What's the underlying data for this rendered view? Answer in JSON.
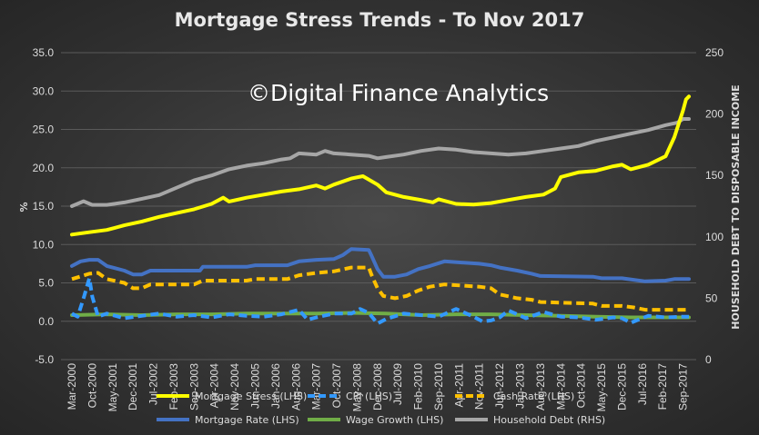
{
  "chart_data": {
    "type": "line",
    "title": "Mortgage Stress Trends - To Nov 2017",
    "watermark": "©Digital Finance Analytics",
    "ylabel_left": "%",
    "ylabel_right": "HOUSEHOLD DEBT TO DISPOSABLE INCOME",
    "ylim_left": [
      -5,
      35
    ],
    "ylim_right": [
      0,
      250
    ],
    "yticks_left": [
      "-5.0",
      "0.0",
      "5.0",
      "10.0",
      "15.0",
      "20.0",
      "25.0",
      "30.0",
      "35.0"
    ],
    "yticks_right": [
      "0",
      "50",
      "100",
      "150",
      "200",
      "250"
    ],
    "x_range": [
      "Mar-2000",
      "Nov-2017"
    ],
    "xticks": [
      "Mar-2000",
      "Oct-2000",
      "May-2001",
      "Dec-2001",
      "Jul-2002",
      "Feb-2003",
      "Sep-2003",
      "Apr-2004",
      "Nov-2004",
      "Jun-2005",
      "Jan-2006",
      "Aug-2006",
      "Mar-2007",
      "Oct-2007",
      "May-2008",
      "Dec-2008",
      "Jul-2009",
      "Feb-2010",
      "Sep-2010",
      "Apr-2011",
      "Nov-2011",
      "Jun-2012",
      "Jan-2013",
      "Aug-2013",
      "Mar-2014",
      "Oct-2014",
      "May-2015",
      "Dec-2015",
      "Jul-2016",
      "Feb-2017",
      "Sep-2017"
    ],
    "grid": true,
    "legend_position": "bottom",
    "series": [
      {
        "name": "Mortgage Stress (LHS)",
        "axis": "left",
        "color": "#ffff00",
        "dash": "solid",
        "points": [
          [
            "Mar-2000",
            11.3
          ],
          [
            "Sep-2000",
            11.6
          ],
          [
            "Mar-2001",
            11.9
          ],
          [
            "Sep-2001",
            12.5
          ],
          [
            "Mar-2002",
            13.0
          ],
          [
            "Sep-2002",
            13.6
          ],
          [
            "Mar-2003",
            14.1
          ],
          [
            "Sep-2003",
            14.6
          ],
          [
            "Mar-2004",
            15.3
          ],
          [
            "Jul-2004",
            16.1
          ],
          [
            "Sep-2004",
            15.6
          ],
          [
            "Mar-2005",
            16.1
          ],
          [
            "Sep-2005",
            16.5
          ],
          [
            "Mar-2006",
            16.9
          ],
          [
            "Sep-2006",
            17.2
          ],
          [
            "Mar-2007",
            17.7
          ],
          [
            "Jun-2007",
            17.3
          ],
          [
            "Sep-2007",
            17.8
          ],
          [
            "Mar-2008",
            18.6
          ],
          [
            "Jul-2008",
            18.9
          ],
          [
            "Dec-2008",
            17.8
          ],
          [
            "Mar-2009",
            16.8
          ],
          [
            "Sep-2009",
            16.2
          ],
          [
            "Mar-2010",
            15.8
          ],
          [
            "Jul-2010",
            15.5
          ],
          [
            "Sep-2010",
            15.9
          ],
          [
            "Mar-2011",
            15.3
          ],
          [
            "Sep-2011",
            15.2
          ],
          [
            "Mar-2012",
            15.4
          ],
          [
            "Sep-2012",
            15.8
          ],
          [
            "Mar-2013",
            16.2
          ],
          [
            "Sep-2013",
            16.5
          ],
          [
            "Jan-2014",
            17.3
          ],
          [
            "Mar-2014",
            18.8
          ],
          [
            "Sep-2014",
            19.4
          ],
          [
            "Mar-2015",
            19.6
          ],
          [
            "Sep-2015",
            20.2
          ],
          [
            "Dec-2015",
            20.4
          ],
          [
            "Mar-2016",
            19.8
          ],
          [
            "Sep-2016",
            20.4
          ],
          [
            "Mar-2017",
            21.5
          ],
          [
            "Jun-2017",
            24.0
          ],
          [
            "Sep-2017",
            27.5
          ],
          [
            "Oct-2017",
            28.9
          ],
          [
            "Nov-2017",
            29.3
          ]
        ]
      },
      {
        "name": "CPI (LHS)",
        "axis": "left",
        "color": "#3399ff",
        "dash": "dash",
        "points": [
          [
            "Mar-2000",
            1.0
          ],
          [
            "May-2000",
            0.6
          ],
          [
            "Jul-2000",
            3.0
          ],
          [
            "Sep-2000",
            5.6
          ],
          [
            "Oct-2000",
            3.2
          ],
          [
            "Dec-2000",
            0.6
          ],
          [
            "Mar-2001",
            1.0
          ],
          [
            "Sep-2001",
            0.4
          ],
          [
            "Mar-2002",
            0.7
          ],
          [
            "Sep-2002",
            1.0
          ],
          [
            "Mar-2003",
            0.6
          ],
          [
            "Sep-2003",
            0.8
          ],
          [
            "Mar-2004",
            0.5
          ],
          [
            "Sep-2004",
            0.9
          ],
          [
            "Mar-2005",
            0.7
          ],
          [
            "Sep-2005",
            0.6
          ],
          [
            "Mar-2006",
            0.9
          ],
          [
            "Sep-2006",
            1.5
          ],
          [
            "Dec-2006",
            0.2
          ],
          [
            "Mar-2007",
            0.5
          ],
          [
            "Sep-2007",
            1.0
          ],
          [
            "Mar-2008",
            1.0
          ],
          [
            "Jun-2008",
            1.6
          ],
          [
            "Sep-2008",
            1.1
          ],
          [
            "Dec-2008",
            -0.3
          ],
          [
            "Mar-2009",
            0.3
          ],
          [
            "Sep-2009",
            1.0
          ],
          [
            "Mar-2010",
            0.8
          ],
          [
            "Sep-2010",
            0.6
          ],
          [
            "Mar-2011",
            1.6
          ],
          [
            "Sep-2011",
            0.6
          ],
          [
            "Dec-2011",
            0.0
          ],
          [
            "Mar-2012",
            0.1
          ],
          [
            "Jun-2012",
            0.5
          ],
          [
            "Sep-2012",
            1.4
          ],
          [
            "Mar-2013",
            0.4
          ],
          [
            "Sep-2013",
            1.2
          ],
          [
            "Mar-2014",
            0.6
          ],
          [
            "Sep-2014",
            0.5
          ],
          [
            "Mar-2015",
            0.2
          ],
          [
            "Sep-2015",
            0.5
          ],
          [
            "Dec-2015",
            0.4
          ],
          [
            "Mar-2016",
            -0.2
          ],
          [
            "Sep-2016",
            0.7
          ],
          [
            "Mar-2017",
            0.5
          ],
          [
            "Sep-2017",
            0.6
          ],
          [
            "Nov-2017",
            0.6
          ]
        ]
      },
      {
        "name": "Cash Rate (LHS)",
        "axis": "left",
        "color": "#ffc000",
        "dash": "dash",
        "points": [
          [
            "Mar-2000",
            5.5
          ],
          [
            "Sep-2000",
            6.2
          ],
          [
            "Dec-2000",
            6.3
          ],
          [
            "Mar-2001",
            5.5
          ],
          [
            "Sep-2001",
            5.0
          ],
          [
            "Dec-2001",
            4.3
          ],
          [
            "Mar-2002",
            4.3
          ],
          [
            "Jun-2002",
            4.8
          ],
          [
            "Sep-2003",
            4.8
          ],
          [
            "Dec-2003",
            5.3
          ],
          [
            "Mar-2005",
            5.3
          ],
          [
            "Jun-2005",
            5.5
          ],
          [
            "May-2006",
            5.5
          ],
          [
            "Sep-2006",
            6.0
          ],
          [
            "Mar-2007",
            6.3
          ],
          [
            "Sep-2007",
            6.5
          ],
          [
            "Mar-2008",
            7.0
          ],
          [
            "Sep-2008",
            7.0
          ],
          [
            "Oct-2008",
            6.0
          ],
          [
            "Dec-2008",
            4.3
          ],
          [
            "Feb-2009",
            3.3
          ],
          [
            "Jun-2009",
            3.0
          ],
          [
            "Oct-2009",
            3.3
          ],
          [
            "Feb-2010",
            4.0
          ],
          [
            "Jun-2010",
            4.5
          ],
          [
            "Nov-2010",
            4.8
          ],
          [
            "Nov-2011",
            4.5
          ],
          [
            "Mar-2012",
            4.3
          ],
          [
            "Jun-2012",
            3.5
          ],
          [
            "Dec-2012",
            3.0
          ],
          [
            "May-2013",
            2.8
          ],
          [
            "Aug-2013",
            2.5
          ],
          [
            "Feb-2015",
            2.3
          ],
          [
            "May-2015",
            2.0
          ],
          [
            "Dec-2015",
            2.0
          ],
          [
            "Apr-2016",
            1.8
          ],
          [
            "Aug-2016",
            1.5
          ],
          [
            "Nov-2017",
            1.5
          ]
        ]
      },
      {
        "name": "Mortgage Rate (LHS)",
        "axis": "left",
        "color": "#4472c4",
        "dash": "solid",
        "points": [
          [
            "Mar-2000",
            7.2
          ],
          [
            "Jun-2000",
            7.8
          ],
          [
            "Sep-2000",
            8.0
          ],
          [
            "Dec-2000",
            8.0
          ],
          [
            "Mar-2001",
            7.2
          ],
          [
            "Sep-2001",
            6.6
          ],
          [
            "Dec-2001",
            6.1
          ],
          [
            "Mar-2002",
            6.1
          ],
          [
            "Jun-2002",
            6.6
          ],
          [
            "Nov-2003",
            6.6
          ],
          [
            "Dec-2003",
            7.1
          ],
          [
            "Mar-2005",
            7.1
          ],
          [
            "Jun-2005",
            7.3
          ],
          [
            "May-2006",
            7.3
          ],
          [
            "Sep-2006",
            7.8
          ],
          [
            "Mar-2007",
            8.0
          ],
          [
            "Sep-2007",
            8.1
          ],
          [
            "Dec-2007",
            8.6
          ],
          [
            "Mar-2008",
            9.4
          ],
          [
            "Sep-2008",
            9.3
          ],
          [
            "Oct-2008",
            8.5
          ],
          [
            "Dec-2008",
            6.8
          ],
          [
            "Feb-2009",
            5.8
          ],
          [
            "Jun-2009",
            5.8
          ],
          [
            "Oct-2009",
            6.1
          ],
          [
            "Feb-2010",
            6.8
          ],
          [
            "Jun-2010",
            7.2
          ],
          [
            "Nov-2010",
            7.8
          ],
          [
            "Nov-2011",
            7.5
          ],
          [
            "Mar-2012",
            7.3
          ],
          [
            "Jun-2012",
            7.0
          ],
          [
            "Dec-2012",
            6.6
          ],
          [
            "May-2013",
            6.2
          ],
          [
            "Aug-2013",
            5.9
          ],
          [
            "Feb-2015",
            5.8
          ],
          [
            "May-2015",
            5.6
          ],
          [
            "Dec-2015",
            5.6
          ],
          [
            "Apr-2016",
            5.4
          ],
          [
            "Aug-2016",
            5.2
          ],
          [
            "Mar-2017",
            5.3
          ],
          [
            "Jun-2017",
            5.5
          ],
          [
            "Nov-2017",
            5.5
          ]
        ]
      },
      {
        "name": "Wage Growth (LHS)",
        "axis": "left",
        "color": "#70ad47",
        "dash": "solid",
        "points": [
          [
            "Mar-2000",
            0.8
          ],
          [
            "Mar-2001",
            0.9
          ],
          [
            "Mar-2002",
            0.8
          ],
          [
            "Mar-2003",
            0.9
          ],
          [
            "Mar-2004",
            0.9
          ],
          [
            "Mar-2005",
            1.0
          ],
          [
            "Mar-2006",
            1.0
          ],
          [
            "Mar-2007",
            1.0
          ],
          [
            "Mar-2008",
            1.1
          ],
          [
            "Mar-2009",
            1.0
          ],
          [
            "Mar-2010",
            0.8
          ],
          [
            "Mar-2011",
            0.9
          ],
          [
            "Mar-2012",
            0.9
          ],
          [
            "Mar-2013",
            0.8
          ],
          [
            "Mar-2014",
            0.7
          ],
          [
            "Mar-2015",
            0.6
          ],
          [
            "Mar-2016",
            0.5
          ],
          [
            "Mar-2017",
            0.5
          ],
          [
            "Nov-2017",
            0.5
          ]
        ]
      },
      {
        "name": "Household Debt (RHS)",
        "axis": "right",
        "color": "#a6a6a6",
        "dash": "solid",
        "points": [
          [
            "Mar-2000",
            125
          ],
          [
            "Jul-2000",
            129
          ],
          [
            "Oct-2000",
            126
          ],
          [
            "Mar-2001",
            126
          ],
          [
            "Sep-2001",
            128
          ],
          [
            "Mar-2002",
            131
          ],
          [
            "Sep-2002",
            134
          ],
          [
            "Mar-2003",
            140
          ],
          [
            "Sep-2003",
            146
          ],
          [
            "Mar-2004",
            150
          ],
          [
            "Sep-2004",
            155
          ],
          [
            "Mar-2005",
            158
          ],
          [
            "Sep-2005",
            160
          ],
          [
            "Mar-2006",
            163
          ],
          [
            "Jun-2006",
            164
          ],
          [
            "Sep-2006",
            168
          ],
          [
            "Mar-2007",
            167
          ],
          [
            "Jun-2007",
            170
          ],
          [
            "Sep-2007",
            168
          ],
          [
            "Mar-2008",
            167
          ],
          [
            "Sep-2008",
            166
          ],
          [
            "Dec-2008",
            164
          ],
          [
            "Mar-2009",
            165
          ],
          [
            "Sep-2009",
            167
          ],
          [
            "Mar-2010",
            170
          ],
          [
            "Sep-2010",
            172
          ],
          [
            "Mar-2011",
            171
          ],
          [
            "Sep-2011",
            169
          ],
          [
            "Mar-2012",
            168
          ],
          [
            "Sep-2012",
            167
          ],
          [
            "Mar-2013",
            168
          ],
          [
            "Sep-2013",
            170
          ],
          [
            "Mar-2014",
            172
          ],
          [
            "Sep-2014",
            174
          ],
          [
            "Mar-2015",
            178
          ],
          [
            "Sep-2015",
            181
          ],
          [
            "Mar-2016",
            184
          ],
          [
            "Sep-2016",
            187
          ],
          [
            "Mar-2017",
            191
          ],
          [
            "Jul-2017",
            193
          ],
          [
            "Sep-2017",
            196
          ],
          [
            "Nov-2017",
            196
          ]
        ]
      }
    ]
  }
}
